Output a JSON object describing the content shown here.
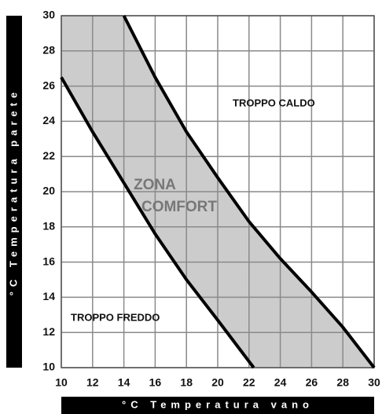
{
  "chart_data": {
    "type": "line",
    "x_label": "°C  Temperatura vano",
    "y_label": "°C  Temperatura parete",
    "annotations": [
      "TROPPO CALDO",
      "ZONA",
      "COMFORT",
      "TROPPO FREDDO"
    ],
    "series": [
      {
        "color": "#000000",
        "x": [
          10,
          12,
          14,
          16,
          18,
          20,
          22.3
        ],
        "values": [
          26.5,
          23.4,
          20.5,
          17.6,
          15.0,
          12.7,
          10
        ]
      },
      {
        "color": "#000000",
        "x": [
          14,
          16,
          18,
          20,
          22,
          24,
          26,
          28,
          30
        ],
        "values": [
          30,
          26.5,
          23.4,
          20.8,
          18.3,
          16.2,
          14.3,
          12.3,
          10
        ]
      }
    ],
    "fill_color": "#cccccc",
    "xlim": [
      10,
      30
    ],
    "xticks": [
      10,
      12,
      14,
      16,
      18,
      20,
      22,
      24,
      26,
      28,
      30
    ],
    "ylim": [
      10,
      30
    ],
    "yticks": [
      10,
      12,
      14,
      16,
      18,
      20,
      22,
      24,
      26,
      28,
      30
    ],
    "grid": true
  }
}
